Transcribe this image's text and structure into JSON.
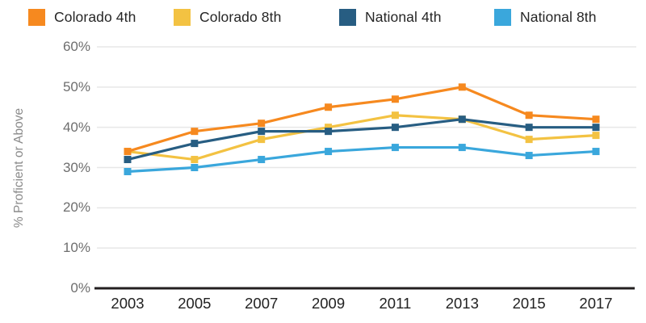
{
  "chart_data": {
    "type": "line",
    "title": "",
    "xlabel": "",
    "ylabel": "% Proficient or Above",
    "x": [
      2003,
      2005,
      2007,
      2009,
      2011,
      2013,
      2015,
      2017
    ],
    "series": [
      {
        "name": "Colorado 4th",
        "color": "#F6891F",
        "values": [
          34,
          39,
          41,
          45,
          47,
          50,
          43,
          42
        ]
      },
      {
        "name": "Colorado 8th",
        "color": "#F3C242",
        "values": [
          34,
          32,
          37,
          40,
          43,
          42,
          37,
          38
        ]
      },
      {
        "name": "National 4th",
        "color": "#275D82",
        "values": [
          32,
          36,
          39,
          39,
          40,
          42,
          40,
          40
        ]
      },
      {
        "name": "National 8th",
        "color": "#3AA7DC",
        "values": [
          29,
          30,
          32,
          34,
          35,
          35,
          33,
          34
        ]
      }
    ],
    "ylim": [
      0,
      60
    ],
    "ytick_step": 10,
    "ytick_suffix": "%",
    "grid": true,
    "legend_position": "top",
    "marker": "square",
    "draw_order": [
      1,
      3,
      2,
      0
    ]
  },
  "colors": {
    "gridline": "#E7E7E7",
    "axis": "#231F20",
    "background": "#FFFFFF"
  }
}
